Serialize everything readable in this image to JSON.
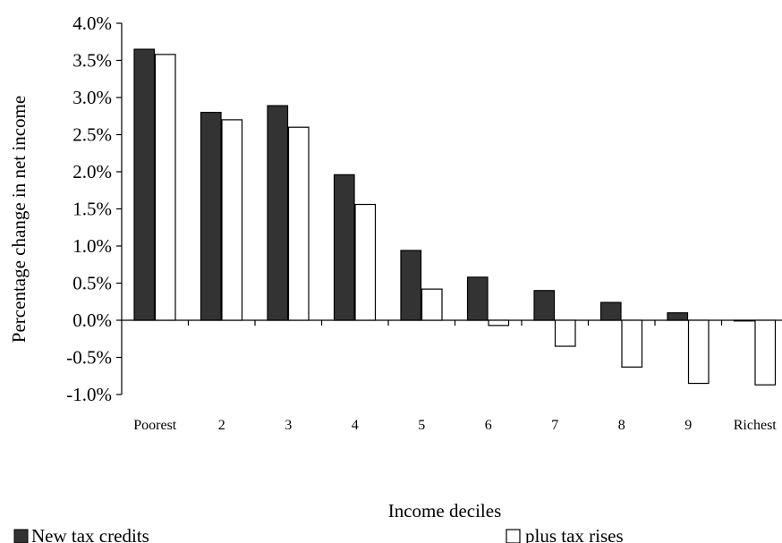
{
  "chart_data": {
    "type": "bar",
    "title": "",
    "xlabel": "Income deciles",
    "ylabel": "Percentage change in net income",
    "categories": [
      "Poorest",
      "2",
      "3",
      "4",
      "5",
      "6",
      "7",
      "8",
      "9",
      "Richest"
    ],
    "ylim": [
      -1.0,
      4.0
    ],
    "ytick_labels": [
      "-1.0%",
      "-0.5%",
      "0.0%",
      "0.5%",
      "1.0%",
      "1.5%",
      "2.0%",
      "2.5%",
      "3.0%",
      "3.5%",
      "4.0%"
    ],
    "grid": false,
    "legend_position": "bottom",
    "series": [
      {
        "name": "New tax credits",
        "color": "#333333",
        "values": [
          3.65,
          2.8,
          2.89,
          1.96,
          0.94,
          0.58,
          0.4,
          0.24,
          0.1,
          0.0
        ]
      },
      {
        "name": "plus tax rises",
        "color": "#ffffff",
        "values": [
          3.58,
          2.7,
          2.6,
          1.56,
          0.42,
          -0.07,
          -0.35,
          -0.63,
          -0.85,
          -0.87
        ]
      }
    ]
  }
}
